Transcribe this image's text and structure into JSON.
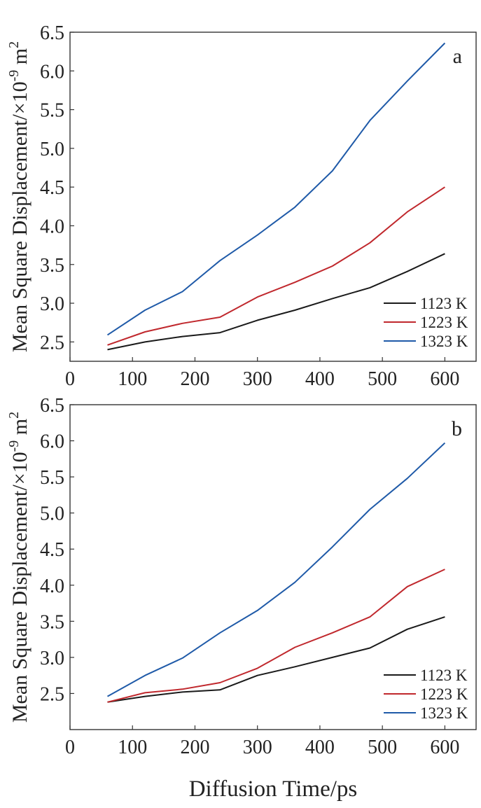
{
  "xlabel": "Diffusion Time/ps",
  "ylabel_base": "Mean Square Displacement/×10",
  "ylabel_exp": "-9",
  "ylabel_unit": " m",
  "ylabel_unit_exp": "2",
  "colors": {
    "1123 K": "#1a1a1a",
    "1223 K": "#c0282d",
    "1323 K": "#1f5aa8"
  },
  "chart_data": [
    {
      "type": "line",
      "panel_label": "a",
      "xlabel": "",
      "ylabel": "Mean Square Displacement/×10-9 m2",
      "xlim": [
        0,
        650
      ],
      "ylim": [
        2.25,
        6.5
      ],
      "xticks": [
        0,
        100,
        200,
        300,
        400,
        500,
        600
      ],
      "xtick_labels": [
        "0",
        "100",
        "200",
        "300",
        "400",
        "500",
        "600"
      ],
      "yticks": [
        2.5,
        3.0,
        3.5,
        4.0,
        4.5,
        5.0,
        5.5,
        6.0,
        6.5
      ],
      "ytick_labels": [
        "2.5",
        "3.0",
        "3.5",
        "4.0",
        "4.5",
        "5.0",
        "5.5",
        "6.0",
        "6.5"
      ],
      "legend_position": "bottom-right",
      "grid": false,
      "x": [
        60,
        120,
        180,
        240,
        300,
        360,
        420,
        480,
        540,
        600
      ],
      "series": [
        {
          "name": "1123 K",
          "values": [
            2.4,
            2.5,
            2.57,
            2.62,
            2.78,
            2.91,
            3.06,
            3.2,
            3.41,
            3.64
          ]
        },
        {
          "name": "1223 K",
          "values": [
            2.46,
            2.63,
            2.74,
            2.82,
            3.08,
            3.27,
            3.48,
            3.78,
            4.18,
            4.5
          ]
        },
        {
          "name": "1323 K",
          "values": [
            2.59,
            2.91,
            3.15,
            3.55,
            3.88,
            4.24,
            4.71,
            5.36,
            5.87,
            6.36
          ]
        }
      ]
    },
    {
      "type": "line",
      "panel_label": "b",
      "xlabel": "Diffusion Time/ps",
      "ylabel": "Mean Square Displacement/×10-9 m2",
      "xlim": [
        0,
        650
      ],
      "ylim": [
        2.0,
        6.5
      ],
      "xticks": [
        0,
        100,
        200,
        300,
        400,
        500,
        600
      ],
      "xtick_labels": [
        "0",
        "100",
        "200",
        "300",
        "400",
        "500",
        "600"
      ],
      "yticks": [
        2.5,
        3.0,
        3.5,
        4.0,
        4.5,
        5.0,
        5.5,
        6.0,
        6.5
      ],
      "ytick_labels": [
        "2.5",
        "3.0",
        "3.5",
        "4.0",
        "4.5",
        "5.0",
        "5.5",
        "6.0",
        "6.5"
      ],
      "legend_position": "bottom-right",
      "grid": false,
      "x": [
        60,
        120,
        180,
        240,
        300,
        360,
        420,
        480,
        540,
        600
      ],
      "series": [
        {
          "name": "1123 K",
          "values": [
            2.38,
            2.46,
            2.52,
            2.55,
            2.75,
            2.87,
            3.0,
            3.13,
            3.39,
            3.56
          ]
        },
        {
          "name": "1223 K",
          "values": [
            2.38,
            2.51,
            2.56,
            2.65,
            2.85,
            3.14,
            3.34,
            3.56,
            3.98,
            4.22
          ]
        },
        {
          "name": "1323 K",
          "values": [
            2.46,
            2.75,
            2.99,
            3.34,
            3.65,
            4.04,
            4.53,
            5.05,
            5.48,
            5.97
          ]
        }
      ]
    }
  ]
}
